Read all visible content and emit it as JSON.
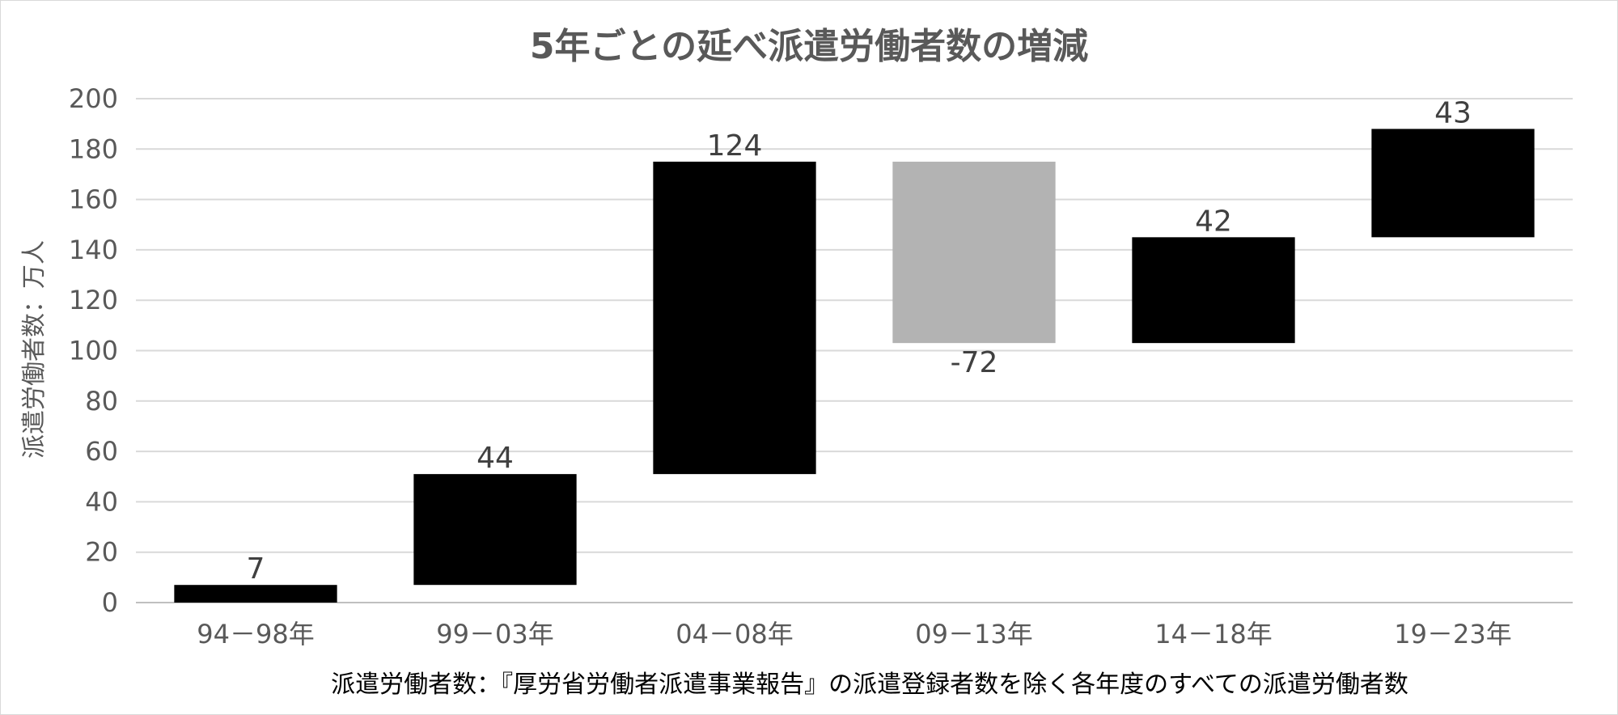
{
  "chart_data": {
    "type": "bar",
    "title": "5年ごとの延べ派遣労働者数の増減",
    "ylabel": "派遣労働者数：万人",
    "xlabel": "派遣労働者数：『厚労省労働者派遣事業報告』の派遣登録者数を除く各年度のすべての派遣労働者数",
    "ylim": [
      0,
      200
    ],
    "yticks": [
      0,
      20,
      40,
      60,
      80,
      100,
      120,
      140,
      160,
      180,
      200
    ],
    "grid": true,
    "categories": [
      "94－98年",
      "99－03年",
      "04－08年",
      "09－13年",
      "14－18年",
      "19－23年"
    ],
    "values": [
      7,
      44,
      124,
      -72,
      42,
      43
    ],
    "bar_ranges": [
      [
        0,
        7
      ],
      [
        7,
        51
      ],
      [
        51,
        175
      ],
      [
        103,
        175
      ],
      [
        103,
        145
      ],
      [
        145,
        188
      ]
    ],
    "data_labels": [
      "7",
      "44",
      "124",
      "-72",
      "42",
      "43"
    ],
    "colors": {
      "increase": "#000000",
      "decrease": "#b3b3b3"
    }
  }
}
